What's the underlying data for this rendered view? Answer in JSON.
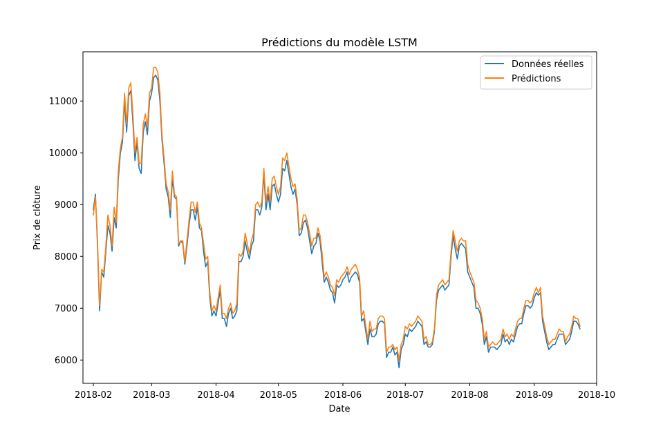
{
  "chart_data": {
    "type": "line",
    "title": "Prédictions du modèle LSTM",
    "xlabel": "Date",
    "ylabel": "Prix de clôture",
    "x_ticks": [
      "2018-02",
      "2018-03",
      "2018-04",
      "2018-05",
      "2018-06",
      "2018-07",
      "2018-08",
      "2018-09",
      "2018-10"
    ],
    "y_ticks": [
      6000,
      7000,
      8000,
      9000,
      10000,
      11000
    ],
    "xlim": [
      "2018-01-27",
      "2018-10-01"
    ],
    "ylim": [
      5550,
      11950
    ],
    "grid": false,
    "legend_position": "top-right",
    "colors": {
      "real": "#1f77b4",
      "pred": "#ff7f0e"
    },
    "x": [
      "2018-02-01",
      "2018-02-02",
      "2018-02-03",
      "2018-02-04",
      "2018-02-05",
      "2018-02-06",
      "2018-02-07",
      "2018-02-08",
      "2018-02-09",
      "2018-02-10",
      "2018-02-11",
      "2018-02-12",
      "2018-02-13",
      "2018-02-14",
      "2018-02-15",
      "2018-02-16",
      "2018-02-17",
      "2018-02-18",
      "2018-02-19",
      "2018-02-20",
      "2018-02-21",
      "2018-02-22",
      "2018-02-23",
      "2018-02-24",
      "2018-02-25",
      "2018-02-26",
      "2018-02-27",
      "2018-02-28",
      "2018-03-01",
      "2018-03-02",
      "2018-03-03",
      "2018-03-04",
      "2018-03-05",
      "2018-03-06",
      "2018-03-07",
      "2018-03-08",
      "2018-03-09",
      "2018-03-10",
      "2018-03-11",
      "2018-03-12",
      "2018-03-13",
      "2018-03-14",
      "2018-03-15",
      "2018-03-16",
      "2018-03-17",
      "2018-03-18",
      "2018-03-19",
      "2018-03-20",
      "2018-03-21",
      "2018-03-22",
      "2018-03-23",
      "2018-03-24",
      "2018-03-25",
      "2018-03-26",
      "2018-03-27",
      "2018-03-28",
      "2018-03-29",
      "2018-03-30",
      "2018-03-31",
      "2018-04-01",
      "2018-04-02",
      "2018-04-03",
      "2018-04-04",
      "2018-04-05",
      "2018-04-06",
      "2018-04-07",
      "2018-04-08",
      "2018-04-09",
      "2018-04-10",
      "2018-04-11",
      "2018-04-12",
      "2018-04-13",
      "2018-04-14",
      "2018-04-15",
      "2018-04-16",
      "2018-04-17",
      "2018-04-18",
      "2018-04-19",
      "2018-04-20",
      "2018-04-21",
      "2018-04-22",
      "2018-04-23",
      "2018-04-24",
      "2018-04-25",
      "2018-04-26",
      "2018-04-27",
      "2018-04-28",
      "2018-04-29",
      "2018-04-30",
      "2018-05-01",
      "2018-05-02",
      "2018-05-03",
      "2018-05-04",
      "2018-05-05",
      "2018-05-06",
      "2018-05-07",
      "2018-05-08",
      "2018-05-09",
      "2018-05-10",
      "2018-05-11",
      "2018-05-12",
      "2018-05-13",
      "2018-05-14",
      "2018-05-15",
      "2018-05-16",
      "2018-05-17",
      "2018-05-18",
      "2018-05-19",
      "2018-05-20",
      "2018-05-21",
      "2018-05-22",
      "2018-05-23",
      "2018-05-24",
      "2018-05-25",
      "2018-05-26",
      "2018-05-27",
      "2018-05-28",
      "2018-05-29",
      "2018-05-30",
      "2018-05-31",
      "2018-06-01",
      "2018-06-02",
      "2018-06-03",
      "2018-06-04",
      "2018-06-05",
      "2018-06-06",
      "2018-06-07",
      "2018-06-08",
      "2018-06-09",
      "2018-06-10",
      "2018-06-11",
      "2018-06-12",
      "2018-06-13",
      "2018-06-14",
      "2018-06-15",
      "2018-06-16",
      "2018-06-17",
      "2018-06-18",
      "2018-06-19",
      "2018-06-20",
      "2018-06-21",
      "2018-06-22",
      "2018-06-23",
      "2018-06-24",
      "2018-06-25",
      "2018-06-26",
      "2018-06-27",
      "2018-06-28",
      "2018-06-29",
      "2018-06-30",
      "2018-07-01",
      "2018-07-02",
      "2018-07-03",
      "2018-07-04",
      "2018-07-05",
      "2018-07-06",
      "2018-07-07",
      "2018-07-08",
      "2018-07-09",
      "2018-07-10",
      "2018-07-11",
      "2018-07-12",
      "2018-07-13",
      "2018-07-14",
      "2018-07-15",
      "2018-07-16",
      "2018-07-17",
      "2018-07-18",
      "2018-07-19",
      "2018-07-20",
      "2018-07-21",
      "2018-07-22",
      "2018-07-23",
      "2018-07-24",
      "2018-07-25",
      "2018-07-26",
      "2018-07-27",
      "2018-07-28",
      "2018-07-29",
      "2018-07-30",
      "2018-07-31",
      "2018-08-01",
      "2018-08-02",
      "2018-08-03",
      "2018-08-04",
      "2018-08-05",
      "2018-08-06",
      "2018-08-07",
      "2018-08-08",
      "2018-08-09",
      "2018-08-10",
      "2018-08-11",
      "2018-08-12",
      "2018-08-13",
      "2018-08-14",
      "2018-08-15",
      "2018-08-16",
      "2018-08-17",
      "2018-08-18",
      "2018-08-19",
      "2018-08-20",
      "2018-08-21",
      "2018-08-22",
      "2018-08-23",
      "2018-08-24",
      "2018-08-25",
      "2018-08-26",
      "2018-08-27",
      "2018-08-28",
      "2018-08-29",
      "2018-08-30",
      "2018-08-31",
      "2018-09-01",
      "2018-09-02",
      "2018-09-03",
      "2018-09-04",
      "2018-09-05",
      "2018-09-06",
      "2018-09-07",
      "2018-09-08",
      "2018-09-09",
      "2018-09-10",
      "2018-09-11",
      "2018-09-12",
      "2018-09-13",
      "2018-09-14",
      "2018-09-15",
      "2018-09-16",
      "2018-09-17",
      "2018-09-18",
      "2018-09-19",
      "2018-09-20",
      "2018-09-21",
      "2018-09-22",
      "2018-09-23"
    ],
    "series": [
      {
        "name": "Données réelles",
        "values": [
          8900,
          9200,
          8200,
          6950,
          7700,
          7600,
          8100,
          8600,
          8450,
          8100,
          8750,
          8550,
          9500,
          10000,
          10200,
          11000,
          10400,
          11100,
          11200,
          10600,
          9850,
          10200,
          9700,
          9600,
          10400,
          10600,
          10350,
          11000,
          11150,
          11450,
          11500,
          11400,
          11000,
          10250,
          9800,
          9300,
          9150,
          8750,
          9500,
          9150,
          9100,
          8200,
          8300,
          8250,
          7850,
          8200,
          8600,
          8900,
          8900,
          8700,
          8950,
          8550,
          8500,
          8100,
          7800,
          7900,
          7200,
          6850,
          6950,
          6850,
          7100,
          7350,
          6800,
          6800,
          6650,
          6900,
          7000,
          6800,
          6850,
          6950,
          7900,
          7900,
          8000,
          8300,
          8100,
          7950,
          8200,
          8300,
          8900,
          8900,
          8800,
          8950,
          9600,
          8900,
          9200,
          8900,
          9350,
          9400,
          9200,
          9050,
          9200,
          9700,
          9650,
          9850,
          9600,
          9350,
          9200,
          9300,
          9000,
          8400,
          8450,
          8650,
          8700,
          8550,
          8300,
          8050,
          8200,
          8250,
          8450,
          8300,
          7900,
          7500,
          7600,
          7500,
          7350,
          7300,
          7100,
          7450,
          7400,
          7450,
          7550,
          7600,
          7700,
          7500,
          7600,
          7650,
          7700,
          7650,
          7500,
          6750,
          6800,
          6550,
          6300,
          6600,
          6450,
          6450,
          6500,
          6700,
          6750,
          6750,
          6700,
          6050,
          6150,
          6150,
          6250,
          6100,
          6150,
          5850,
          6200,
          6300,
          6500,
          6450,
          6600,
          6550,
          6600,
          6650,
          6750,
          6700,
          6650,
          6300,
          6350,
          6250,
          6250,
          6300,
          6550,
          7150,
          7350,
          7400,
          7450,
          7350,
          7400,
          7450,
          8000,
          8400,
          8150,
          7950,
          8200,
          8250,
          8200,
          8150,
          7700,
          7600,
          7500,
          7400,
          7000,
          7000,
          6900,
          6700,
          6300,
          6450,
          6150,
          6250,
          6250,
          6250,
          6200,
          6250,
          6300,
          6500,
          6350,
          6400,
          6300,
          6400,
          6350,
          6500,
          6650,
          6700,
          6700,
          6900,
          7050,
          7050,
          7000,
          7050,
          7200,
          7300,
          7250,
          7300,
          6750,
          6550,
          6350,
          6200,
          6250,
          6300,
          6300,
          6400,
          6500,
          6500,
          6500,
          6300,
          6350,
          6400,
          6550,
          6750,
          6750,
          6700,
          6600
        ]
      },
      {
        "name": "Prédictions",
        "values": [
          8800,
          9150,
          8300,
          7050,
          7750,
          7700,
          8200,
          8800,
          8600,
          8200,
          8950,
          8650,
          9650,
          10100,
          10300,
          11150,
          10550,
          11250,
          11350,
          10750,
          10000,
          10300,
          9800,
          9800,
          10550,
          10750,
          10500,
          11150,
          11250,
          11650,
          11650,
          11550,
          11150,
          10350,
          9900,
          9400,
          9250,
          8900,
          9650,
          9200,
          9150,
          8250,
          8300,
          8300,
          7900,
          8300,
          8700,
          9050,
          9050,
          8850,
          9050,
          8650,
          8550,
          8250,
          7950,
          8000,
          7300,
          6950,
          7050,
          6950,
          7200,
          7450,
          6900,
          6900,
          6800,
          7000,
          7100,
          6900,
          6950,
          7100,
          8050,
          8000,
          8100,
          8450,
          8250,
          8050,
          8300,
          8450,
          9000,
          9050,
          8950,
          9050,
          9700,
          9050,
          9350,
          9050,
          9500,
          9550,
          9350,
          9200,
          9350,
          9900,
          9850,
          10000,
          9750,
          9500,
          9350,
          9400,
          9100,
          8500,
          8550,
          8800,
          8800,
          8650,
          8450,
          8200,
          8350,
          8350,
          8550,
          8400,
          8050,
          7600,
          7700,
          7600,
          7450,
          7400,
          7250,
          7550,
          7500,
          7600,
          7650,
          7700,
          7800,
          7650,
          7750,
          7800,
          7850,
          7750,
          7600,
          6850,
          6950,
          6650,
          6400,
          6750,
          6550,
          6600,
          6600,
          6800,
          6850,
          6850,
          6800,
          6150,
          6250,
          6250,
          6300,
          6200,
          6250,
          6000,
          6300,
          6400,
          6650,
          6600,
          6700,
          6650,
          6700,
          6750,
          6850,
          6800,
          6750,
          6400,
          6450,
          6300,
          6300,
          6350,
          6600,
          7250,
          7450,
          7500,
          7550,
          7450,
          7500,
          7550,
          8100,
          8500,
          8300,
          8100,
          8300,
          8350,
          8300,
          8300,
          7850,
          7700,
          7600,
          7500,
          7150,
          7100,
          7000,
          6800,
          6400,
          6550,
          6250,
          6300,
          6350,
          6300,
          6300,
          6350,
          6400,
          6600,
          6450,
          6500,
          6400,
          6500,
          6450,
          6600,
          6750,
          6800,
          6800,
          7000,
          7150,
          7150,
          7100,
          7150,
          7300,
          7400,
          7300,
          7400,
          6850,
          6650,
          6450,
          6300,
          6350,
          6400,
          6400,
          6500,
          6600,
          6550,
          6550,
          6350,
          6450,
          6500,
          6650,
          6850,
          6800,
          6800,
          6650
        ]
      }
    ]
  }
}
